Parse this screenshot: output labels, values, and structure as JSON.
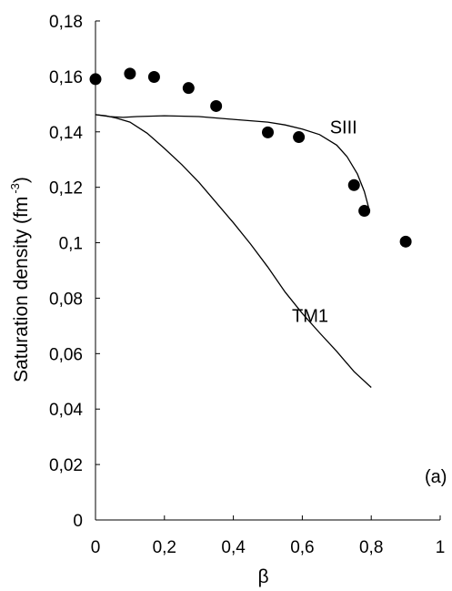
{
  "chart_data": {
    "type": "scatter",
    "xlabel": "β",
    "ylabel": "Saturation density (fm",
    "ylabel_superscript": "-3",
    "ylabel_close": ")",
    "xlim": [
      0,
      1
    ],
    "ylim": [
      0,
      0.18
    ],
    "grid": false,
    "x_ticks": [
      {
        "value": 0,
        "label": "0"
      },
      {
        "value": 0.2,
        "label": "0,2"
      },
      {
        "value": 0.4,
        "label": "0,4"
      },
      {
        "value": 0.6,
        "label": "0,6"
      },
      {
        "value": 0.8,
        "label": "0,8"
      },
      {
        "value": 1,
        "label": "1"
      }
    ],
    "y_ticks": [
      {
        "value": 0,
        "label": "0"
      },
      {
        "value": 0.02,
        "label": "0,02"
      },
      {
        "value": 0.04,
        "label": "0,04"
      },
      {
        "value": 0.06,
        "label": "0,06"
      },
      {
        "value": 0.08,
        "label": "0,08"
      },
      {
        "value": 0.1,
        "label": "0,1"
      },
      {
        "value": 0.12,
        "label": "0,12"
      },
      {
        "value": 0.14,
        "label": "0,14"
      },
      {
        "value": 0.16,
        "label": "0,16"
      },
      {
        "value": 0.18,
        "label": "0,18"
      }
    ],
    "series": [
      {
        "kind": "markers",
        "color": "#000000",
        "points": [
          {
            "x": 0.0,
            "y": 0.159
          },
          {
            "x": 0.1,
            "y": 0.161
          },
          {
            "x": 0.17,
            "y": 0.1598
          },
          {
            "x": 0.27,
            "y": 0.1558
          },
          {
            "x": 0.35,
            "y": 0.1493
          },
          {
            "x": 0.5,
            "y": 0.1398
          },
          {
            "x": 0.59,
            "y": 0.1381
          },
          {
            "x": 0.75,
            "y": 0.1208
          },
          {
            "x": 0.78,
            "y": 0.1115
          },
          {
            "x": 0.9,
            "y": 0.1004
          }
        ]
      },
      {
        "kind": "line",
        "name": "SIII",
        "color": "#000000",
        "points": [
          {
            "x": 0.0,
            "y": 0.1462
          },
          {
            "x": 0.04,
            "y": 0.1455
          },
          {
            "x": 0.08,
            "y": 0.1452
          },
          {
            "x": 0.12,
            "y": 0.1455
          },
          {
            "x": 0.2,
            "y": 0.1458
          },
          {
            "x": 0.3,
            "y": 0.1455
          },
          {
            "x": 0.4,
            "y": 0.1445
          },
          {
            "x": 0.5,
            "y": 0.1435
          },
          {
            "x": 0.55,
            "y": 0.1425
          },
          {
            "x": 0.6,
            "y": 0.141
          },
          {
            "x": 0.65,
            "y": 0.139
          },
          {
            "x": 0.7,
            "y": 0.1352
          },
          {
            "x": 0.73,
            "y": 0.131
          },
          {
            "x": 0.76,
            "y": 0.1248
          },
          {
            "x": 0.78,
            "y": 0.1185
          },
          {
            "x": 0.795,
            "y": 0.1115
          }
        ]
      },
      {
        "kind": "line",
        "name": "TM1",
        "color": "#000000",
        "points": [
          {
            "x": 0.0,
            "y": 0.1462
          },
          {
            "x": 0.03,
            "y": 0.1458
          },
          {
            "x": 0.06,
            "y": 0.145
          },
          {
            "x": 0.1,
            "y": 0.1435
          },
          {
            "x": 0.15,
            "y": 0.1395
          },
          {
            "x": 0.2,
            "y": 0.134
          },
          {
            "x": 0.25,
            "y": 0.1282
          },
          {
            "x": 0.3,
            "y": 0.1218
          },
          {
            "x": 0.35,
            "y": 0.1145
          },
          {
            "x": 0.4,
            "y": 0.1072
          },
          {
            "x": 0.45,
            "y": 0.0995
          },
          {
            "x": 0.5,
            "y": 0.0912
          },
          {
            "x": 0.55,
            "y": 0.0822
          },
          {
            "x": 0.6,
            "y": 0.0745
          },
          {
            "x": 0.65,
            "y": 0.0675
          },
          {
            "x": 0.7,
            "y": 0.0608
          },
          {
            "x": 0.75,
            "y": 0.0535
          },
          {
            "x": 0.8,
            "y": 0.0478
          }
        ]
      }
    ],
    "annotations": [
      {
        "text": "SIII",
        "x": 0.68,
        "y": 0.1395
      },
      {
        "text": "TM1",
        "x": 0.57,
        "y": 0.0715
      },
      {
        "text": "(a)",
        "x": 0.955,
        "y": 0.0135
      }
    ]
  }
}
